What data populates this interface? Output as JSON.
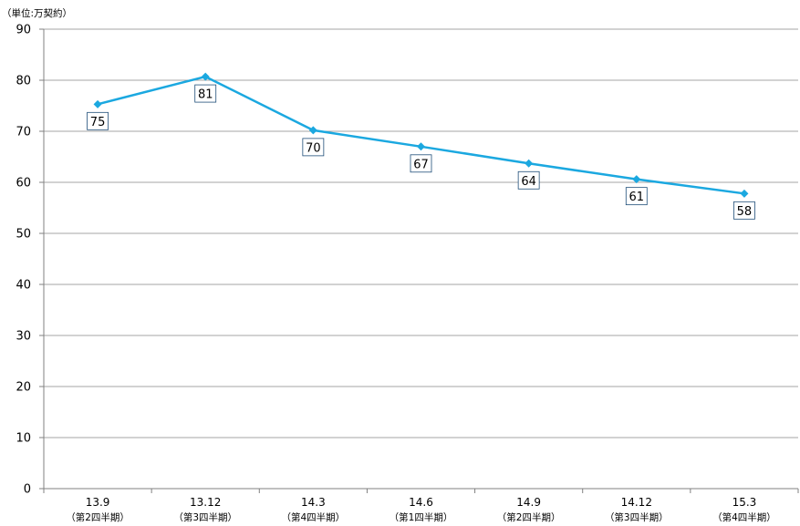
{
  "chart_data": {
    "type": "line",
    "unit_label": "（単位:万契約）",
    "title": "",
    "xlabel": "",
    "ylabel": "",
    "ylim": [
      0,
      90
    ],
    "y_ticks": [
      0,
      10,
      20,
      30,
      40,
      50,
      60,
      70,
      80,
      90
    ],
    "grid": true,
    "categories": [
      "13.9",
      "13.12",
      "14.3",
      "14.6",
      "14.9",
      "14.12",
      "15.3"
    ],
    "category_sublabels": [
      "（第2四半期）",
      "（第3四半期）",
      "（第4四半期）",
      "（第1四半期）",
      "（第2四半期）",
      "（第3四半期）",
      "（第4四半期）"
    ],
    "series": [
      {
        "values": [
          75.3,
          80.7,
          70.2,
          67.0,
          63.7,
          60.6,
          57.8
        ],
        "data_labels": [
          "75",
          "81",
          "70",
          "67",
          "64",
          "61",
          "58"
        ],
        "color": "#1ba8e0"
      }
    ],
    "colors": {
      "line": "#1ba8e0",
      "marker": "#1ba8e0",
      "gridline": "#a6a6a6",
      "axis": "#808080",
      "label_box_border": "#1f4e79"
    }
  }
}
